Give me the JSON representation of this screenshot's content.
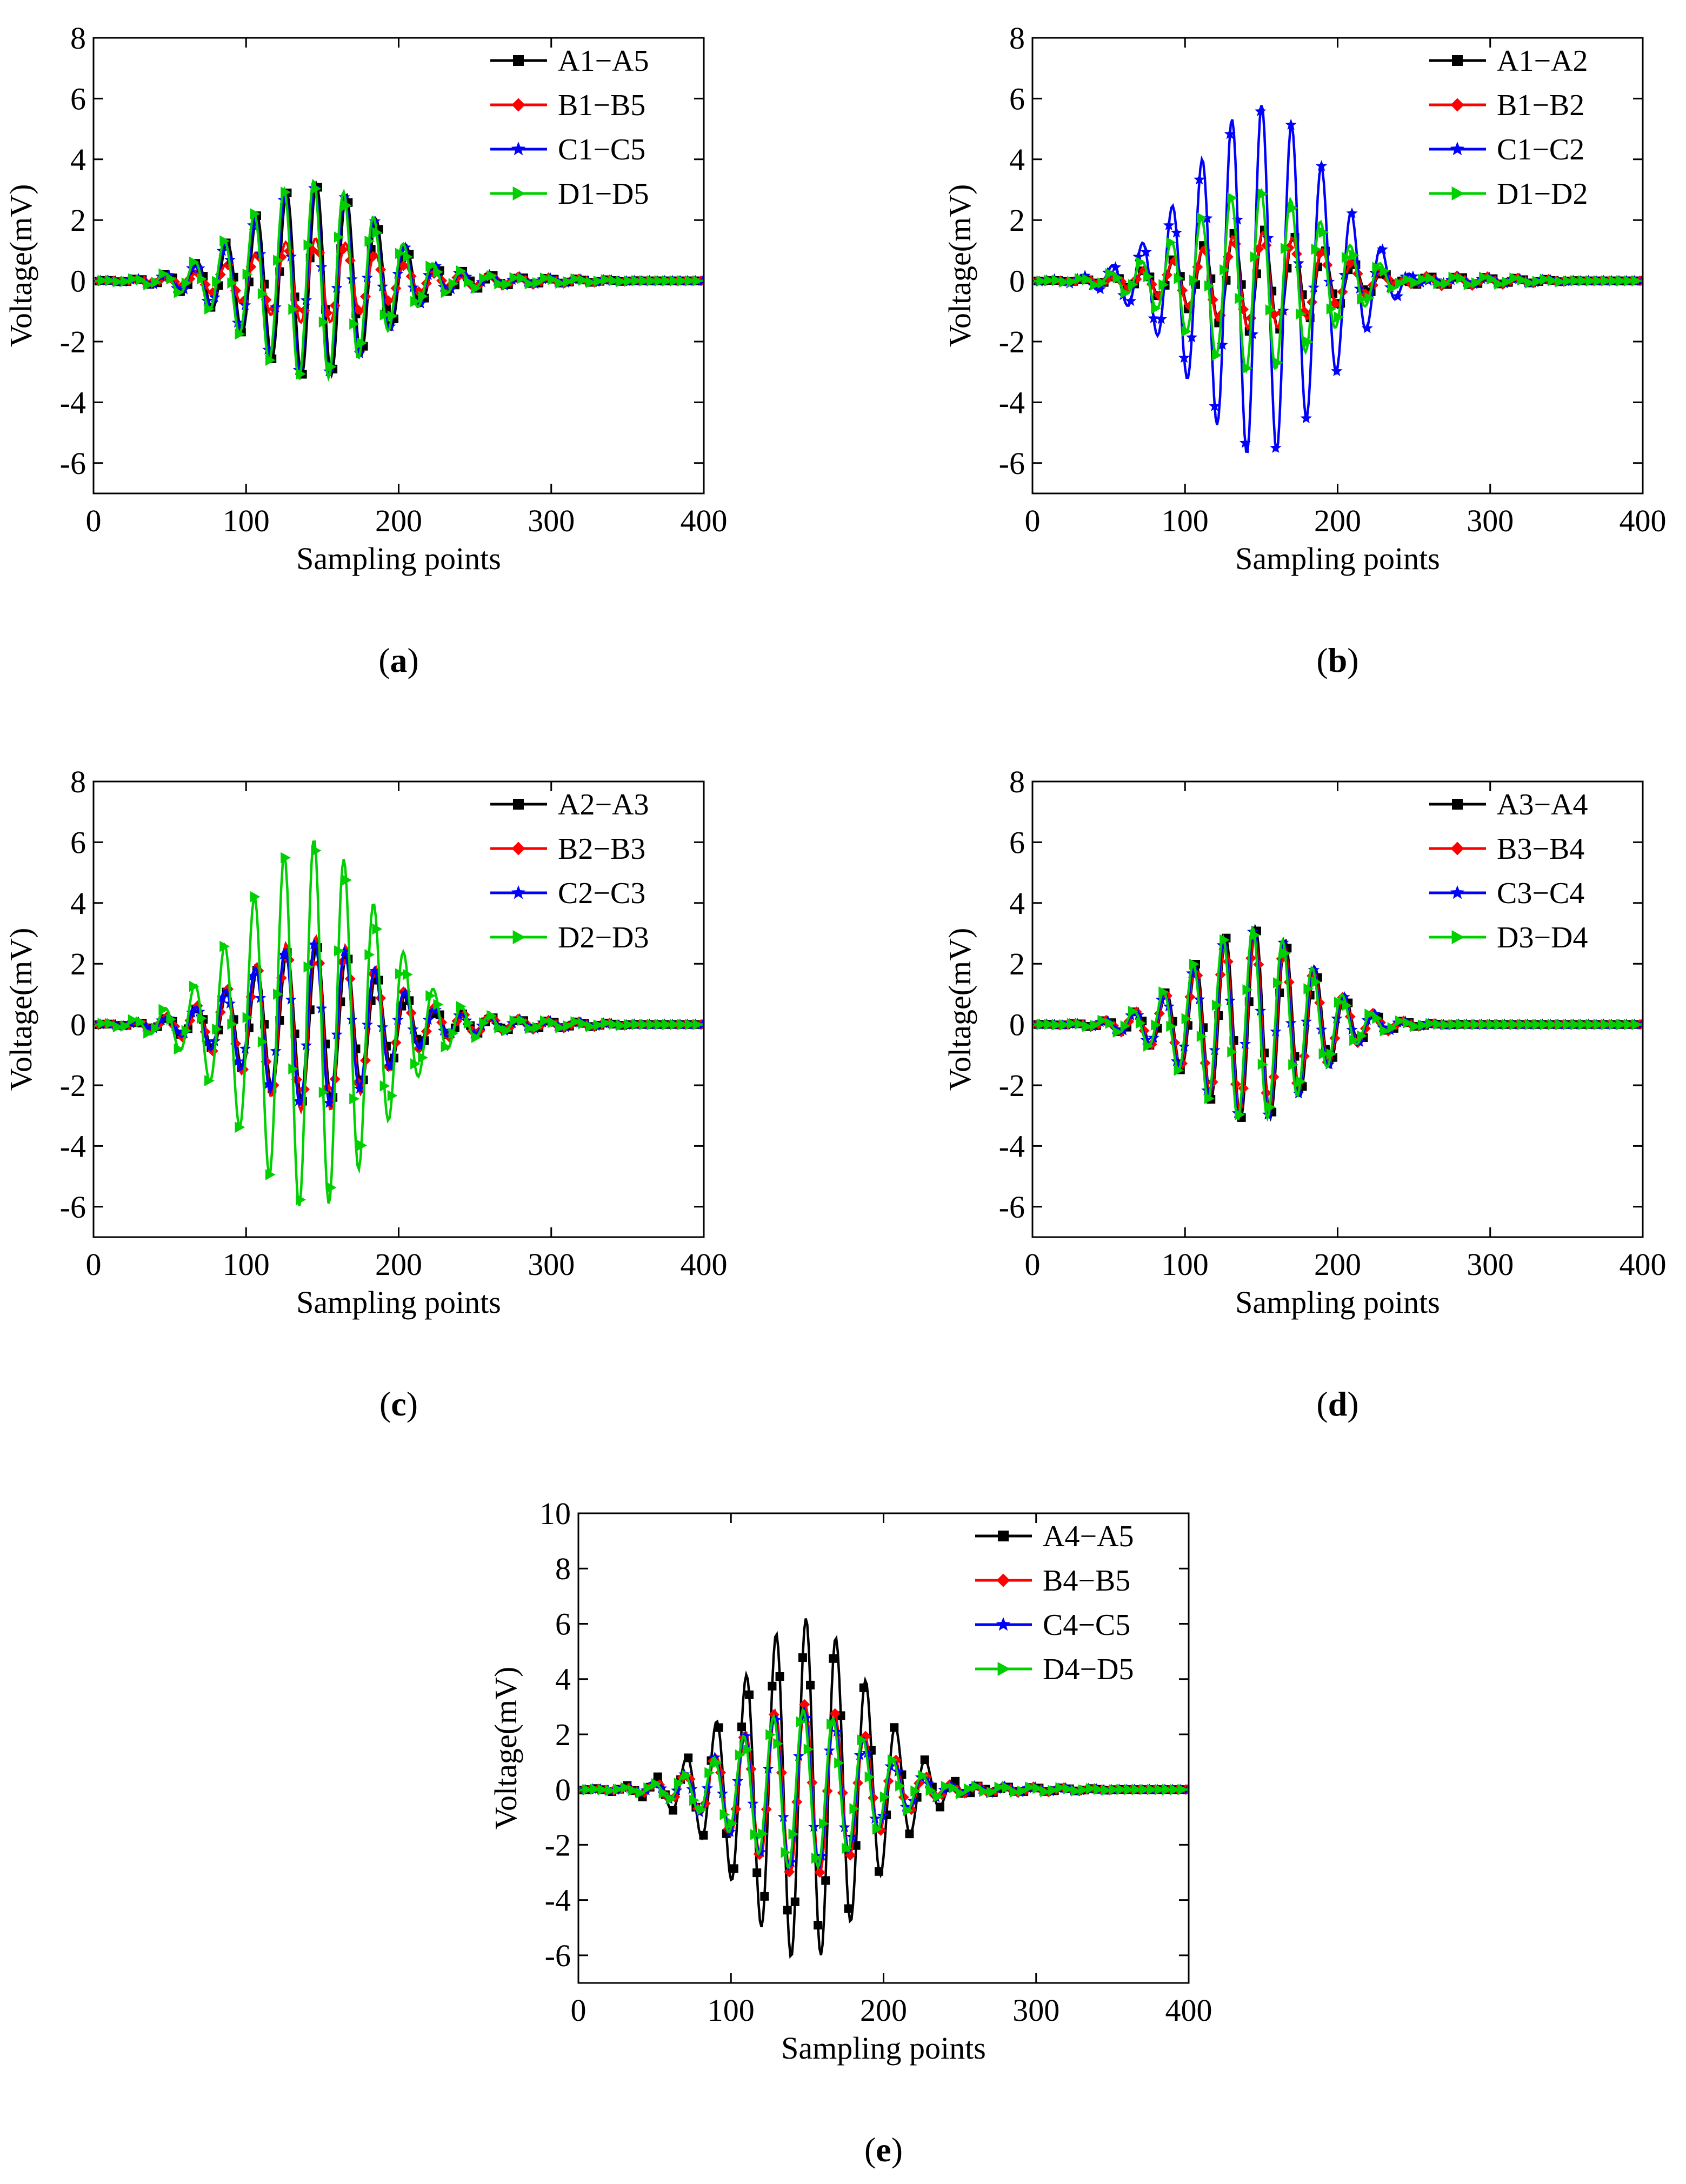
{
  "figure": {
    "x_label": "Sampling points",
    "y_label": "Voltage(mV)",
    "colors": {
      "A": "#000000",
      "B": "#ff0000",
      "C": "#0000ff",
      "D": "#00d000"
    },
    "markers": {
      "A": "square",
      "B": "diamond",
      "C": "star",
      "D": "triangle-right"
    }
  },
  "chart_data": [
    {
      "type": "line",
      "panel_label": "a",
      "xlabel": "Sampling points",
      "ylabel": "Voltage(mV)",
      "xlim": [
        0,
        400
      ],
      "ylim": [
        -7,
        8
      ],
      "x_ticks": [
        0,
        100,
        200,
        300,
        400
      ],
      "y_ticks": [
        -6,
        -4,
        -2,
        0,
        2,
        4,
        6,
        8
      ],
      "legend_position": "top-right",
      "wave_params": {
        "center": 145,
        "width": 60,
        "period": 19.6,
        "phase": 1.2,
        "tail_amp": 0.22,
        "tail_end": 360
      },
      "series": [
        {
          "key": "A",
          "name": "A1−A5",
          "peak_amplitude": 3.2
        },
        {
          "key": "B",
          "name": "B1−B5",
          "peak_amplitude": 1.4
        },
        {
          "key": "C",
          "name": "C1−C5",
          "peak_amplitude": 3.1
        },
        {
          "key": "D",
          "name": "D1−D5",
          "peak_amplitude": 3.3
        }
      ]
    },
    {
      "type": "line",
      "panel_label": "b",
      "xlabel": "Sampling points",
      "ylabel": "Voltage(mV)",
      "xlim": [
        0,
        400
      ],
      "ylim": [
        -7,
        8
      ],
      "x_ticks": [
        0,
        100,
        200,
        300,
        400
      ],
      "y_ticks": [
        -6,
        -4,
        -2,
        0,
        2,
        4,
        6,
        8
      ],
      "legend_position": "top-right",
      "wave_params": {
        "center": 150,
        "width": 62,
        "period": 19.6,
        "phase": 1.1,
        "tail_amp": 0.3,
        "tail_end": 360
      },
      "series": [
        {
          "key": "A",
          "name": "A1−A2",
          "peak_amplitude": 1.7
        },
        {
          "key": "B",
          "name": "B1−B2",
          "peak_amplitude": 1.6
        },
        {
          "key": "C",
          "name": "C1−C2",
          "peak_amplitude": 5.8
        },
        {
          "key": "D",
          "name": "D1−D2",
          "peak_amplitude": 3.0
        }
      ]
    },
    {
      "type": "line",
      "panel_label": "c",
      "xlabel": "Sampling points",
      "ylabel": "Voltage(mV)",
      "xlim": [
        0,
        400
      ],
      "ylim": [
        -7,
        8
      ],
      "x_ticks": [
        0,
        100,
        200,
        300,
        400
      ],
      "y_ticks": [
        -6,
        -4,
        -2,
        0,
        2,
        4,
        6,
        8
      ],
      "legend_position": "top-right",
      "wave_params": {
        "center": 145,
        "width": 62,
        "period": 19.6,
        "phase": 1.15,
        "tail_amp": 0.3,
        "tail_end": 360
      },
      "series": [
        {
          "key": "A",
          "name": "A2−A3",
          "peak_amplitude": 2.6
        },
        {
          "key": "B",
          "name": "B2−B3",
          "peak_amplitude": 2.9
        },
        {
          "key": "C",
          "name": "C2−C3",
          "peak_amplitude": 2.7
        },
        {
          "key": "D",
          "name": "D2−D3",
          "peak_amplitude": 6.1
        }
      ]
    },
    {
      "type": "line",
      "panel_label": "d",
      "xlabel": "Sampling points",
      "ylabel": "Voltage(mV)",
      "xlim": [
        0,
        400
      ],
      "ylim": [
        -7,
        8
      ],
      "x_ticks": [
        0,
        100,
        200,
        300,
        400
      ],
      "y_ticks": [
        -6,
        -4,
        -2,
        0,
        2,
        4,
        6,
        8
      ],
      "legend_position": "top-right",
      "wave_params": {
        "center": 145,
        "width": 55,
        "period": 19.6,
        "phase": 1.2,
        "tail_amp": 0.0,
        "tail_end": 240
      },
      "series": [
        {
          "key": "A",
          "name": "A3−A4",
          "peak_amplitude": 3.2
        },
        {
          "key": "B",
          "name": "B3−B4",
          "peak_amplitude": 3.0
        },
        {
          "key": "C",
          "name": "C3−C4",
          "peak_amplitude": 3.1
        },
        {
          "key": "D",
          "name": "D3−D4",
          "peak_amplitude": 3.2
        }
      ]
    },
    {
      "type": "line",
      "panel_label": "e",
      "xlabel": "Sampling points",
      "ylabel": "Voltage(mV)",
      "xlim": [
        0,
        400
      ],
      "ylim": [
        -7,
        10
      ],
      "x_ticks": [
        0,
        100,
        200,
        300,
        400
      ],
      "y_ticks": [
        -6,
        -4,
        -2,
        0,
        2,
        4,
        6,
        8,
        10
      ],
      "legend_position": "top-right",
      "wave_params": {
        "center": 148,
        "width": 60,
        "period": 19.6,
        "phase": 1.2,
        "tail_amp": 0.22,
        "tail_end": 360
      },
      "series": [
        {
          "key": "A",
          "name": "A4−A5",
          "peak_amplitude": 6.2
        },
        {
          "key": "B",
          "name": "B4−B5",
          "peak_amplitude": 3.1
        },
        {
          "key": "C",
          "name": "C4−C5",
          "peak_amplitude": 2.9
        },
        {
          "key": "D",
          "name": "D4−D5",
          "peak_amplitude": 2.9
        }
      ]
    }
  ]
}
